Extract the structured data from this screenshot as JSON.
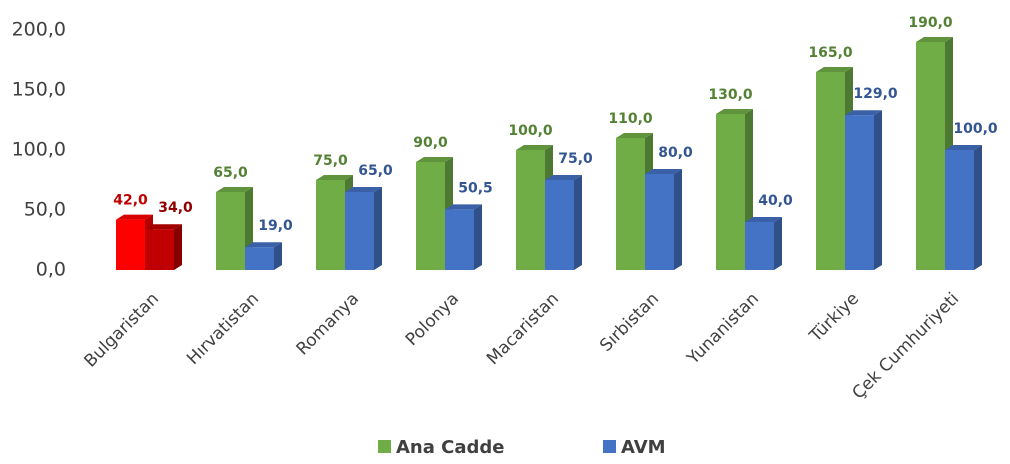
{
  "chart_data": {
    "type": "bar",
    "categories": [
      "Bulgaristan",
      "Hırvatistan",
      "Romanya",
      "Polonya",
      "Macaristan",
      "Sırbistan",
      "Yunanistan",
      "Türkiye",
      "Çek Cumhuriyeti"
    ],
    "series": [
      {
        "name": "Ana Cadde",
        "color": "#70ad47",
        "colors": [
          "#ff0000",
          "#70ad47",
          "#70ad47",
          "#70ad47",
          "#70ad47",
          "#70ad47",
          "#70ad47",
          "#70ad47",
          "#70ad47"
        ],
        "values": [
          42,
          65,
          75,
          90,
          100,
          110,
          130,
          165,
          190
        ],
        "value_labels": [
          "42,0",
          "65,0",
          "75,0",
          "90,0",
          "100,0",
          "110,0",
          "130,0",
          "165,0",
          "190,0"
        ]
      },
      {
        "name": "AVM",
        "color": "#4472c4",
        "colors": [
          "#c00000",
          "#4472c4",
          "#4472c4",
          "#4472c4",
          "#4472c4",
          "#4472c4",
          "#4472c4",
          "#4472c4",
          "#4472c4"
        ],
        "values": [
          34,
          19,
          65,
          50.5,
          75,
          80,
          40,
          129,
          100
        ],
        "value_labels": [
          "34,0",
          "19,0",
          "65,0",
          "50,5",
          "75,0",
          "80,0",
          "40,0",
          "129,0",
          "100,0"
        ]
      }
    ],
    "ylim": [
      0,
      200
    ],
    "yticks": [
      {
        "value": 0,
        "label": "0,0"
      },
      {
        "value": 50,
        "label": "50,0"
      },
      {
        "value": 100,
        "label": "100,0"
      },
      {
        "value": 150,
        "label": "150,0"
      },
      {
        "value": 200,
        "label": "200,0"
      }
    ],
    "legend": "bottom"
  }
}
